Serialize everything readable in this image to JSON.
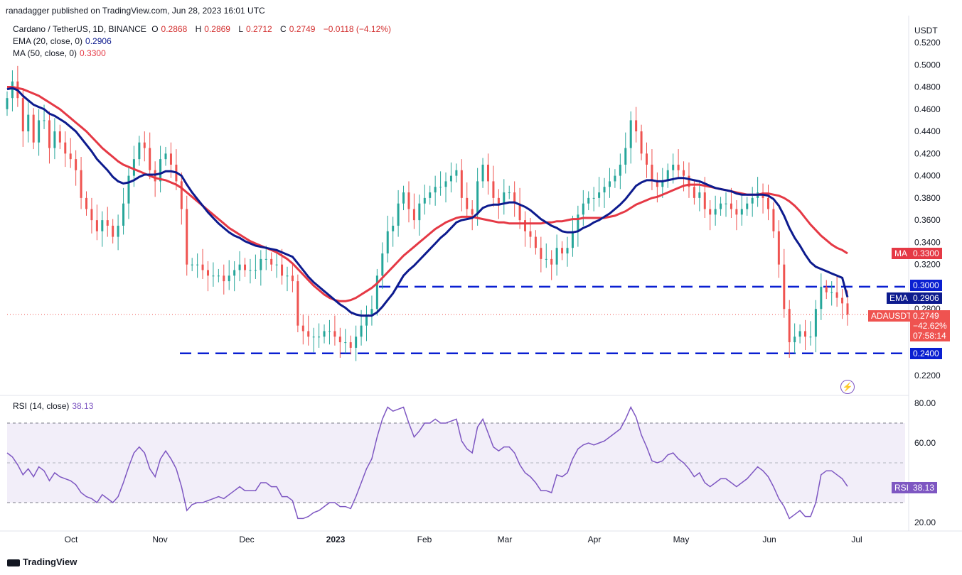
{
  "header": {
    "published_by": "ranadagger published on TradingView.com, Jun 28, 2023 16:01 UTC"
  },
  "legend": {
    "symbol": "Cardano / TetherUS, 1D, BINANCE",
    "o_label": "O",
    "o_value": "0.2868",
    "h_label": "H",
    "h_value": "0.2869",
    "l_label": "L",
    "l_value": "0.2712",
    "c_label": "C",
    "c_value": "0.2749",
    "change": "−0.0118 (−4.12%)",
    "ema_label": "EMA (20, close, 0)",
    "ema_value": "0.2906",
    "ma_label": "MA (50, close, 0)",
    "ma_value": "0.3300",
    "rsi_label": "RSI (14, close)",
    "rsi_value": "38.13"
  },
  "price_axis": {
    "currency": "USDT",
    "ticks": [
      "0.5200",
      "0.5000",
      "0.4800",
      "0.4600",
      "0.4400",
      "0.4200",
      "0.4000",
      "0.3800",
      "0.3600",
      "0.3400",
      "0.3200",
      "0.2800",
      "0.2200"
    ]
  },
  "rsi_axis": {
    "ticks": [
      "80.00",
      "60.00",
      "20.00"
    ]
  },
  "time_axis": {
    "labels": [
      "Oct",
      "Nov",
      "Dec",
      "2023",
      "Feb",
      "Mar",
      "Apr",
      "May",
      "Jun",
      "Jul"
    ]
  },
  "tags": {
    "ma": {
      "label": "MA",
      "value": "0.3300"
    },
    "level_300": "0.3000",
    "ema": {
      "label": "EMA",
      "value": "0.2906"
    },
    "price": {
      "label": "ADAUSDT",
      "value": "0.2749",
      "change": "−42.62%",
      "countdown": "07:58:14"
    },
    "level_240": "0.2400",
    "rsi": {
      "label": "RSI",
      "value": "38.13"
    }
  },
  "footer": {
    "brand": "TradingView"
  },
  "colors": {
    "up": "#26a69a",
    "down": "#ef5350",
    "ema": "#0d1b8e",
    "ma": "#e53945",
    "level": "#0a1fd1",
    "rsi": "#7e57c2"
  },
  "chart_data": {
    "type": "candlestick",
    "ylim": [
      0.19,
      0.54
    ],
    "levels": [
      0.3,
      0.24
    ],
    "close": [
      0.47,
      0.485,
      0.47,
      0.44,
      0.455,
      0.43,
      0.45,
      0.45,
      0.425,
      0.44,
      0.43,
      0.42,
      0.415,
      0.405,
      0.38,
      0.37,
      0.36,
      0.35,
      0.36,
      0.355,
      0.345,
      0.355,
      0.375,
      0.4,
      0.415,
      0.43,
      0.425,
      0.405,
      0.395,
      0.415,
      0.42,
      0.41,
      0.395,
      0.37,
      0.32,
      0.32,
      0.32,
      0.315,
      0.31,
      0.31,
      0.31,
      0.305,
      0.31,
      0.315,
      0.32,
      0.315,
      0.315,
      0.315,
      0.325,
      0.325,
      0.32,
      0.32,
      0.31,
      0.31,
      0.305,
      0.265,
      0.26,
      0.255,
      0.255,
      0.255,
      0.26,
      0.26,
      0.255,
      0.25,
      0.25,
      0.245,
      0.255,
      0.265,
      0.275,
      0.28,
      0.31,
      0.33,
      0.35,
      0.355,
      0.375,
      0.385,
      0.37,
      0.36,
      0.375,
      0.38,
      0.385,
      0.39,
      0.39,
      0.395,
      0.4,
      0.405,
      0.38,
      0.37,
      0.365,
      0.395,
      0.41,
      0.395,
      0.38,
      0.375,
      0.385,
      0.385,
      0.375,
      0.36,
      0.35,
      0.345,
      0.335,
      0.325,
      0.325,
      0.32,
      0.335,
      0.33,
      0.335,
      0.35,
      0.365,
      0.375,
      0.38,
      0.38,
      0.385,
      0.39,
      0.395,
      0.4,
      0.41,
      0.425,
      0.45,
      0.44,
      0.42,
      0.41,
      0.395,
      0.39,
      0.395,
      0.405,
      0.41,
      0.405,
      0.4,
      0.39,
      0.38,
      0.385,
      0.37,
      0.365,
      0.37,
      0.375,
      0.375,
      0.37,
      0.365,
      0.37,
      0.375,
      0.38,
      0.385,
      0.38,
      0.37,
      0.35,
      0.32,
      0.28,
      0.25,
      0.255,
      0.26,
      0.255,
      0.255,
      0.28,
      0.3,
      0.295,
      0.295,
      0.29,
      0.285,
      0.2749
    ],
    "ema20": [
      0.478,
      0.479,
      0.477,
      0.472,
      0.468,
      0.464,
      0.462,
      0.46,
      0.456,
      0.454,
      0.451,
      0.448,
      0.444,
      0.44,
      0.434,
      0.428,
      0.422,
      0.415,
      0.41,
      0.405,
      0.399,
      0.395,
      0.393,
      0.394,
      0.396,
      0.399,
      0.401,
      0.401,
      0.401,
      0.402,
      0.404,
      0.404,
      0.403,
      0.4,
      0.392,
      0.385,
      0.379,
      0.373,
      0.367,
      0.362,
      0.357,
      0.353,
      0.349,
      0.346,
      0.344,
      0.341,
      0.339,
      0.337,
      0.336,
      0.335,
      0.334,
      0.333,
      0.331,
      0.329,
      0.327,
      0.321,
      0.315,
      0.309,
      0.304,
      0.3,
      0.296,
      0.292,
      0.288,
      0.284,
      0.281,
      0.277,
      0.275,
      0.274,
      0.274,
      0.274,
      0.277,
      0.282,
      0.288,
      0.294,
      0.302,
      0.31,
      0.315,
      0.319,
      0.324,
      0.329,
      0.334,
      0.339,
      0.344,
      0.348,
      0.353,
      0.358,
      0.36,
      0.361,
      0.362,
      0.366,
      0.371,
      0.373,
      0.374,
      0.374,
      0.375,
      0.376,
      0.376,
      0.374,
      0.372,
      0.369,
      0.365,
      0.361,
      0.358,
      0.355,
      0.353,
      0.35,
      0.349,
      0.349,
      0.35,
      0.353,
      0.355,
      0.358,
      0.36,
      0.363,
      0.366,
      0.37,
      0.374,
      0.379,
      0.385,
      0.391,
      0.394,
      0.396,
      0.396,
      0.395,
      0.395,
      0.396,
      0.397,
      0.398,
      0.398,
      0.397,
      0.396,
      0.395,
      0.393,
      0.391,
      0.389,
      0.388,
      0.387,
      0.386,
      0.384,
      0.383,
      0.383,
      0.383,
      0.383,
      0.383,
      0.382,
      0.379,
      0.373,
      0.364,
      0.353,
      0.344,
      0.337,
      0.329,
      0.322,
      0.318,
      0.316,
      0.314,
      0.312,
      0.31,
      0.308,
      0.2906
    ],
    "ma50": [
      0.48,
      0.48,
      0.479,
      0.478,
      0.476,
      0.474,
      0.472,
      0.469,
      0.466,
      0.463,
      0.46,
      0.456,
      0.452,
      0.448,
      0.444,
      0.44,
      0.435,
      0.43,
      0.425,
      0.421,
      0.417,
      0.413,
      0.41,
      0.408,
      0.406,
      0.404,
      0.402,
      0.4,
      0.398,
      0.397,
      0.396,
      0.394,
      0.392,
      0.389,
      0.385,
      0.381,
      0.377,
      0.373,
      0.369,
      0.365,
      0.361,
      0.357,
      0.353,
      0.35,
      0.347,
      0.344,
      0.341,
      0.339,
      0.337,
      0.335,
      0.333,
      0.331,
      0.328,
      0.325,
      0.321,
      0.316,
      0.311,
      0.306,
      0.301,
      0.297,
      0.293,
      0.29,
      0.288,
      0.287,
      0.287,
      0.288,
      0.29,
      0.293,
      0.296,
      0.299,
      0.303,
      0.308,
      0.313,
      0.318,
      0.323,
      0.328,
      0.332,
      0.336,
      0.34,
      0.344,
      0.348,
      0.352,
      0.355,
      0.358,
      0.36,
      0.362,
      0.363,
      0.363,
      0.363,
      0.362,
      0.361,
      0.36,
      0.359,
      0.358,
      0.358,
      0.357,
      0.357,
      0.357,
      0.357,
      0.357,
      0.357,
      0.357,
      0.358,
      0.358,
      0.359,
      0.359,
      0.36,
      0.361,
      0.361,
      0.362,
      0.362,
      0.362,
      0.362,
      0.362,
      0.363,
      0.364,
      0.366,
      0.368,
      0.371,
      0.374,
      0.376,
      0.378,
      0.38,
      0.381,
      0.383,
      0.385,
      0.387,
      0.389,
      0.391,
      0.392,
      0.392,
      0.392,
      0.391,
      0.39,
      0.389,
      0.388,
      0.387,
      0.386,
      0.385,
      0.384,
      0.383,
      0.383,
      0.383,
      0.384,
      0.384,
      0.383,
      0.382,
      0.38,
      0.377,
      0.373,
      0.368,
      0.362,
      0.356,
      0.351,
      0.346,
      0.342,
      0.338,
      0.335,
      0.333,
      0.33
    ],
    "rsi": {
      "ylim": [
        15,
        85
      ],
      "bands": [
        70,
        30
      ],
      "values": [
        55,
        53,
        49,
        44,
        47,
        43,
        48,
        46,
        41,
        45,
        43,
        42,
        41,
        39,
        35,
        33,
        32,
        30,
        34,
        32,
        30,
        33,
        40,
        48,
        55,
        58,
        55,
        47,
        43,
        52,
        56,
        52,
        47,
        38,
        26,
        29,
        30,
        30,
        31,
        32,
        33,
        32,
        34,
        36,
        38,
        36,
        36,
        36,
        40,
        40,
        38,
        38,
        33,
        33,
        31,
        22,
        22,
        23,
        25,
        26,
        28,
        30,
        30,
        28,
        28,
        27,
        33,
        40,
        47,
        52,
        63,
        72,
        78,
        76,
        77,
        78,
        70,
        63,
        66,
        70,
        70,
        72,
        70,
        70,
        71,
        72,
        61,
        57,
        55,
        68,
        72,
        65,
        58,
        56,
        58,
        58,
        55,
        49,
        45,
        43,
        40,
        36,
        36,
        35,
        44,
        43,
        45,
        52,
        57,
        59,
        60,
        59,
        60,
        61,
        63,
        65,
        67,
        72,
        78,
        73,
        64,
        58,
        51,
        50,
        51,
        54,
        55,
        52,
        50,
        47,
        43,
        45,
        40,
        38,
        40,
        42,
        42,
        40,
        38,
        40,
        42,
        45,
        48,
        46,
        43,
        38,
        32,
        28,
        22,
        24,
        26,
        23,
        23,
        30,
        44,
        46,
        46,
        44,
        42,
        38.13
      ]
    }
  }
}
